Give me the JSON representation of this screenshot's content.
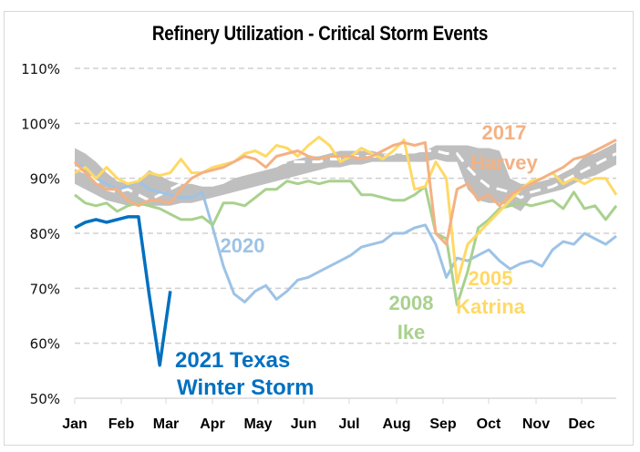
{
  "chart_data": {
    "type": "line",
    "title": "Refinery Utilization - Critical Storm Events",
    "xlabel": "",
    "ylabel": "",
    "ylim": [
      50,
      110
    ],
    "y_ticks": [
      "50%",
      "60%",
      "70%",
      "80%",
      "90%",
      "100%",
      "110%"
    ],
    "y_tick_values": [
      50,
      60,
      70,
      80,
      90,
      100,
      110
    ],
    "x_ticks": [
      "Jan",
      "Feb",
      "Mar",
      "Apr",
      "May",
      "Jun",
      "Jul",
      "Aug",
      "Sep",
      "Oct",
      "Nov",
      "Dec"
    ],
    "x_unit": "week",
    "xlim": [
      1,
      52
    ],
    "grid": "horizontal-dashed",
    "legend": "none (direct labels)",
    "range_band": {
      "name": "Historical range",
      "color": "#bfbfbf",
      "upper": [
        95.5,
        94.5,
        93,
        91,
        89.5,
        89,
        89.5,
        91.5,
        90.5,
        89.5,
        89,
        89,
        88.5,
        88.5,
        89,
        90,
        90.5,
        91,
        91.5,
        92,
        93,
        93.5,
        94,
        94,
        94.5,
        95,
        95,
        95,
        95,
        94.5,
        94.5,
        94.5,
        94.5,
        95,
        96,
        96,
        96,
        96,
        95.5,
        95.5,
        95,
        90,
        89,
        89,
        89.5,
        90,
        91,
        92,
        94,
        94.5,
        95.5,
        96.5
      ],
      "lower": [
        89,
        88,
        87,
        86,
        85.5,
        85,
        85,
        85,
        85,
        85,
        85.5,
        85.5,
        86,
        86.5,
        87,
        87.5,
        88,
        88.5,
        89,
        89.5,
        90,
        90.5,
        91,
        91.5,
        92,
        92,
        92.5,
        92.5,
        93,
        93,
        93,
        93,
        93,
        93,
        93.5,
        93,
        93,
        88,
        86,
        85.5,
        85.5,
        85,
        84,
        86.5,
        87,
        87.5,
        88,
        89,
        90,
        90.5,
        91.5,
        92.5
      ]
    },
    "series": [
      {
        "name": "Average",
        "style": "dashed",
        "color": "#ffffff",
        "values": [
          92,
          91,
          89.5,
          88,
          87.5,
          88,
          87,
          86,
          87,
          88,
          89,
          90,
          90,
          90.5,
          91,
          91,
          91.5,
          91.5,
          92,
          92.5,
          93,
          93,
          93,
          93,
          93.5,
          93.5,
          94,
          94,
          94,
          94,
          94.5,
          94.5,
          95,
          95,
          95,
          94.5,
          94.5,
          92,
          90,
          88.5,
          88,
          87.5,
          86.5,
          87.5,
          88,
          88.5,
          89.5,
          90.5,
          91.5,
          92.5,
          93.5,
          94.5
        ]
      },
      {
        "name": "2017 Harvey",
        "label": [
          "2017",
          "Harvey"
        ],
        "color": "#f4b183",
        "values": [
          93,
          91,
          89,
          88,
          88,
          86,
          85,
          86,
          86,
          85.5,
          88,
          90,
          91,
          91.5,
          92,
          93,
          94,
          93.5,
          92,
          94,
          94.5,
          95,
          94,
          93.5,
          94,
          94,
          94,
          93.5,
          94,
          95,
          96,
          96.5,
          96,
          96.5,
          80,
          78,
          88,
          89,
          86,
          87,
          85,
          87,
          88,
          89,
          90,
          91,
          92,
          93.5,
          94,
          95,
          96,
          97
        ]
      },
      {
        "name": "2005 Katrina",
        "label": [
          "2005",
          "Katrina"
        ],
        "color": "#ffd966",
        "values": [
          91,
          92,
          90,
          92,
          90,
          89,
          89.5,
          91,
          90.5,
          91,
          93.5,
          91,
          91,
          92,
          92.5,
          93,
          94.5,
          95,
          94,
          96,
          95.5,
          94,
          96,
          97.5,
          96,
          93,
          94,
          95.5,
          94.5,
          93.5,
          95,
          97,
          88,
          88.5,
          93,
          90,
          71,
          78,
          80,
          82,
          84,
          86,
          88,
          89.5,
          90,
          91,
          89,
          90,
          89,
          90,
          90,
          87
        ]
      },
      {
        "name": "2008 Ike",
        "label": [
          "2008",
          "Ike"
        ],
        "color": "#a9d18e",
        "values": [
          87,
          85.5,
          85,
          85.5,
          84,
          85,
          85.5,
          85,
          84.5,
          83.5,
          82.5,
          82.5,
          83,
          81.5,
          85.5,
          85.5,
          85,
          86.5,
          88,
          88,
          89.5,
          89,
          89.5,
          89,
          89.5,
          89.5,
          89.5,
          87,
          87,
          86.5,
          86,
          86,
          87,
          88.5,
          80,
          79,
          67,
          73,
          81,
          82.5,
          84.5,
          85,
          85.5,
          85,
          85.5,
          86,
          84.5,
          87.5,
          84.5,
          85,
          82.5,
          85
        ]
      },
      {
        "name": "2020",
        "label": [
          "2020"
        ],
        "color": "#9dc3e6",
        "values": [
          93,
          92,
          90,
          89,
          88,
          88.5,
          89.5,
          88,
          87.5,
          87,
          86.5,
          86.5,
          87.5,
          81,
          74,
          69,
          67.5,
          69.5,
          70.5,
          68,
          69.5,
          71.5,
          72,
          73,
          74,
          75,
          76,
          77.5,
          78,
          78.5,
          80,
          80,
          81,
          81.5,
          78,
          72,
          75.5,
          75,
          76,
          77,
          75,
          73.5,
          74.5,
          75,
          74,
          77,
          78.5,
          78,
          80,
          79,
          78,
          79.5
        ]
      },
      {
        "name": "2021 Texas Winter Storm",
        "label": [
          "2021 Texas",
          "Winter Storm"
        ],
        "color": "#0070c0",
        "values": [
          81,
          82,
          82.5,
          82,
          82.5,
          83,
          83,
          69,
          56,
          69.5
        ]
      }
    ]
  }
}
